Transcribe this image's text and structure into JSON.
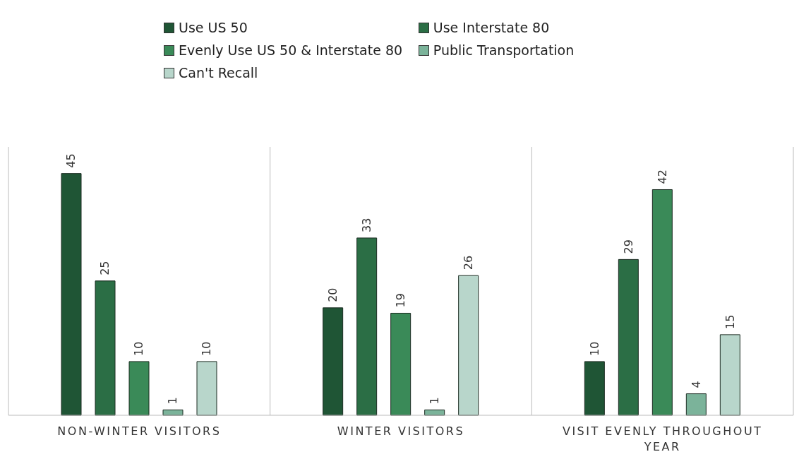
{
  "chart_data": {
    "type": "bar",
    "categories": [
      "NON-WINTER VISITORS",
      "WINTER VISITORS",
      "VISIT EVENLY THROUGHOUT YEAR"
    ],
    "series": [
      {
        "name": "Use US 50",
        "color": "#1f5535",
        "values": [
          45,
          20,
          10
        ]
      },
      {
        "name": "Use Interstate 80",
        "color": "#2b6e45",
        "values": [
          25,
          33,
          29
        ]
      },
      {
        "name": "Evenly Use US 50 & Interstate 80",
        "color": "#3a8a58",
        "values": [
          10,
          19,
          42
        ]
      },
      {
        "name": "Public Transportation",
        "color": "#7bb39a",
        "values": [
          1,
          1,
          4
        ]
      },
      {
        "name": "Can't Recall",
        "color": "#b8d6cb",
        "values": [
          10,
          26,
          15
        ]
      }
    ],
    "data_labels": true,
    "legend": "top",
    "grid": "x"
  }
}
